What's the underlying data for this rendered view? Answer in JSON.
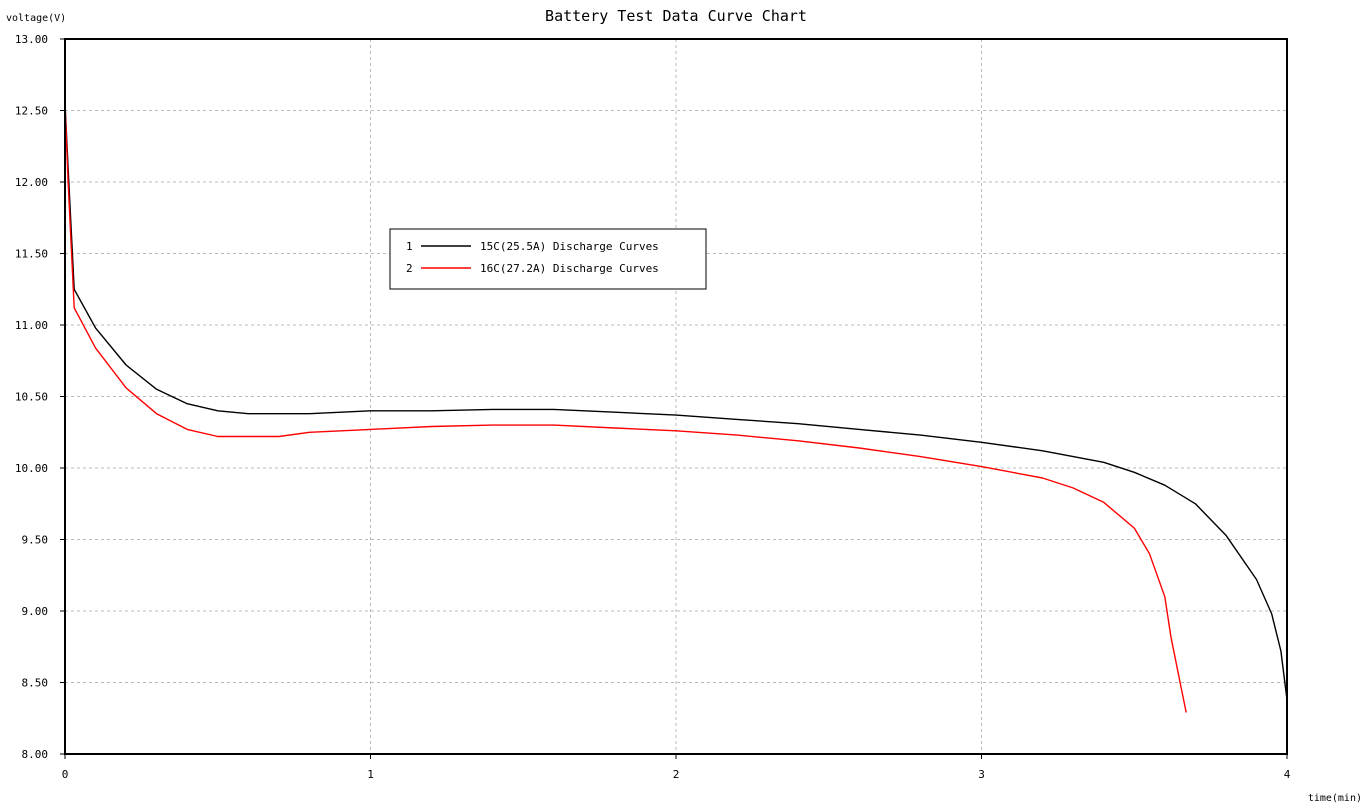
{
  "chart_data": {
    "type": "line",
    "title": "Battery Test Data Curve Chart",
    "xlabel": "time(min)",
    "ylabel": "voltage(V)",
    "xlim": [
      0,
      4
    ],
    "ylim": [
      8.0,
      13.0
    ],
    "x_ticks": [
      "0",
      "1",
      "2",
      "3",
      "4"
    ],
    "y_ticks": [
      "13.00",
      "12.50",
      "12.00",
      "11.50",
      "11.00",
      "10.50",
      "10.00",
      "9.50",
      "9.00",
      "8.50",
      "8.00"
    ],
    "grid": true,
    "legend_position": "upper-center",
    "series": [
      {
        "index": "1",
        "name": "15C(25.5A) Discharge Curves",
        "color": "#000000",
        "x": [
          0,
          0.01,
          0.03,
          0.1,
          0.2,
          0.3,
          0.4,
          0.5,
          0.6,
          0.7,
          0.8,
          1.0,
          1.2,
          1.4,
          1.6,
          1.8,
          2.0,
          2.2,
          2.4,
          2.6,
          2.8,
          3.0,
          3.2,
          3.4,
          3.5,
          3.6,
          3.7,
          3.8,
          3.9,
          3.95,
          3.98,
          4.0
        ],
        "y": [
          12.55,
          12.1,
          11.25,
          10.98,
          10.72,
          10.55,
          10.45,
          10.4,
          10.38,
          10.38,
          10.38,
          10.4,
          10.4,
          10.41,
          10.41,
          10.39,
          10.37,
          10.34,
          10.31,
          10.27,
          10.23,
          10.18,
          10.12,
          10.04,
          9.97,
          9.88,
          9.75,
          9.53,
          9.22,
          8.98,
          8.72,
          8.38
        ]
      },
      {
        "index": "2",
        "name": "16C(27.2A) Discharge Curves",
        "color": "#ff0000",
        "x": [
          0,
          0.01,
          0.03,
          0.1,
          0.2,
          0.3,
          0.4,
          0.5,
          0.6,
          0.7,
          0.8,
          1.0,
          1.2,
          1.4,
          1.6,
          1.8,
          2.0,
          2.2,
          2.4,
          2.6,
          2.8,
          3.0,
          3.2,
          3.3,
          3.4,
          3.5,
          3.55,
          3.6,
          3.62,
          3.65,
          3.67
        ],
        "y": [
          12.55,
          12.0,
          11.12,
          10.84,
          10.56,
          10.38,
          10.27,
          10.22,
          10.22,
          10.22,
          10.25,
          10.27,
          10.29,
          10.3,
          10.3,
          10.28,
          10.26,
          10.23,
          10.19,
          10.14,
          10.08,
          10.01,
          9.93,
          9.86,
          9.76,
          9.58,
          9.4,
          9.1,
          8.82,
          8.5,
          8.29
        ]
      }
    ]
  }
}
